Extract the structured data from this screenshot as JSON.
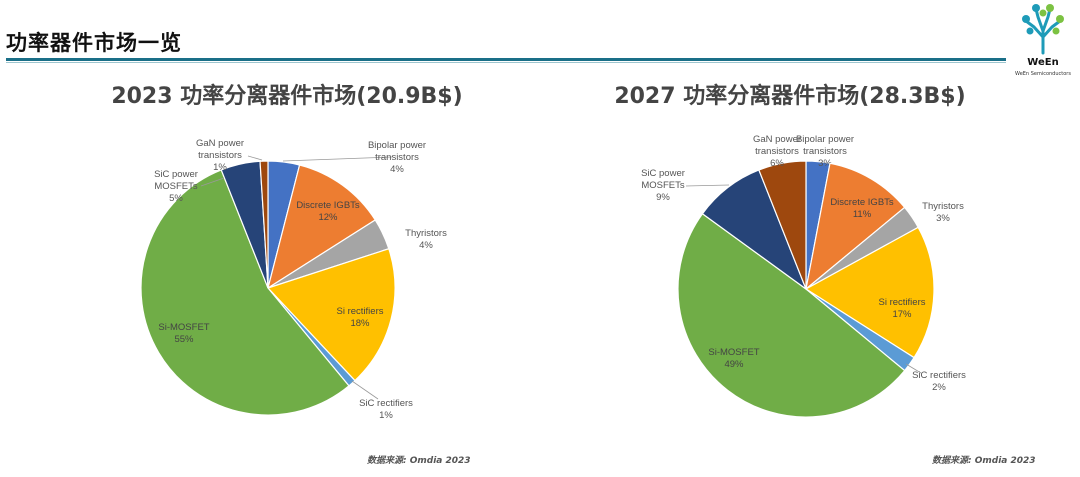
{
  "page": {
    "title": "功率器件市场一览",
    "logo_text": "WeEn",
    "logo_subtext": "WeEn Semiconductors",
    "source_label": "数据来源: Omdia 2023"
  },
  "colors": {
    "accent_rule": "#1a6f88"
  },
  "chart_data": [
    {
      "type": "pie",
      "title": "2023 功率分离器件市场(20.9B$)",
      "slices": [
        {
          "name": "Bipolar power transistors",
          "label_lines": [
            "Bipolar power",
            "transistors"
          ],
          "value": 4,
          "display": "4%",
          "color": "#4472c4",
          "label_pos": "outside"
        },
        {
          "name": "Discrete IGBTs",
          "label_lines": [
            "Discrete IGBTs"
          ],
          "value": 12,
          "display": "12%",
          "color": "#ed7d31",
          "label_pos": "inside"
        },
        {
          "name": "Thyristors",
          "label_lines": [
            "Thyristors"
          ],
          "value": 4,
          "display": "4%",
          "color": "#a5a5a5",
          "label_pos": "outside"
        },
        {
          "name": "Si rectifiers",
          "label_lines": [
            "Si rectifiers"
          ],
          "value": 18,
          "display": "18%",
          "color": "#ffc000",
          "label_pos": "inside"
        },
        {
          "name": "SiC rectifiers",
          "label_lines": [
            "SiC rectifiers"
          ],
          "value": 1,
          "display": "1%",
          "color": "#5b9bd5",
          "label_pos": "outside"
        },
        {
          "name": "Si-MOSFET",
          "label_lines": [
            "Si-MOSFET"
          ],
          "value": 55,
          "display": "55%",
          "color": "#70ad47",
          "label_pos": "inside"
        },
        {
          "name": "SiC power MOSFETs",
          "label_lines": [
            "SiC power",
            "MOSFETs"
          ],
          "value": 5,
          "display": "5%",
          "color": "#264478",
          "label_pos": "outside"
        },
        {
          "name": "GaN power transistors",
          "label_lines": [
            "GaN power",
            "transistors"
          ],
          "value": 1,
          "display": "1%",
          "color": "#9e480e",
          "label_pos": "outside"
        }
      ]
    },
    {
      "type": "pie",
      "title": "2027 功率分离器件市场(28.3B$)",
      "slices": [
        {
          "name": "Bipolar power transistors",
          "label_lines": [
            "Bipolar power",
            "transistors"
          ],
          "value": 3,
          "display": "3%",
          "color": "#4472c4",
          "label_pos": "outside"
        },
        {
          "name": "Discrete IGBTs",
          "label_lines": [
            "Discrete IGBTs"
          ],
          "value": 11,
          "display": "11%",
          "color": "#ed7d31",
          "label_pos": "inside"
        },
        {
          "name": "Thyristors",
          "label_lines": [
            "Thyristors"
          ],
          "value": 3,
          "display": "3%",
          "color": "#a5a5a5",
          "label_pos": "outside"
        },
        {
          "name": "Si rectifiers",
          "label_lines": [
            "Si rectifiers"
          ],
          "value": 17,
          "display": "17%",
          "color": "#ffc000",
          "label_pos": "inside"
        },
        {
          "name": "SiC rectifiers",
          "label_lines": [
            "SiC rectifiers"
          ],
          "value": 2,
          "display": "2%",
          "color": "#5b9bd5",
          "label_pos": "outside"
        },
        {
          "name": "Si-MOSFET",
          "label_lines": [
            "Si-MOSFET"
          ],
          "value": 49,
          "display": "49%",
          "color": "#70ad47",
          "label_pos": "inside"
        },
        {
          "name": "SiC power MOSFETs",
          "label_lines": [
            "SiC power",
            "MOSFETs"
          ],
          "value": 9,
          "display": "9%",
          "color": "#264478",
          "label_pos": "outside"
        },
        {
          "name": "GaN power transistors",
          "label_lines": [
            "GaN power",
            "transistors"
          ],
          "value": 6,
          "display": "6%",
          "color": "#9e480e",
          "label_pos": "outside"
        }
      ]
    }
  ]
}
